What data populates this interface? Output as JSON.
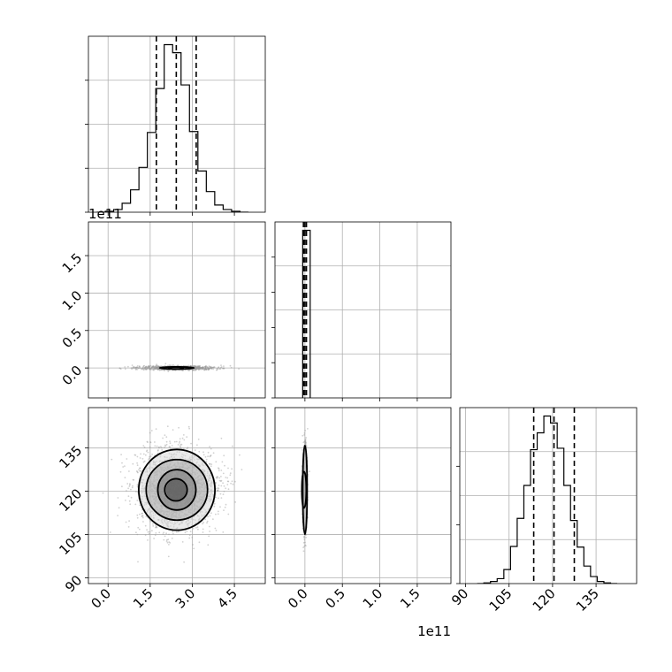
{
  "chart_data": {
    "type": "corner",
    "parameters": [
      {
        "index": 0,
        "tick_labels": [
          "0.0",
          "1.5",
          "3.0",
          "4.5"
        ],
        "tick_values": [
          0.0,
          1.5,
          3.0,
          4.5
        ],
        "range": [
          -0.7,
          5.6
        ]
      },
      {
        "index": 1,
        "tick_labels": [
          "0.0",
          "0.5",
          "1.0",
          "1.5"
        ],
        "tick_values": [
          0.0,
          0.5,
          1.0,
          1.5
        ],
        "range": [
          -0.4,
          1.95
        ],
        "offset_text": "1e11"
      },
      {
        "index": 2,
        "tick_labels": [
          "90",
          "105",
          "120",
          "135"
        ],
        "tick_values": [
          90,
          105,
          120,
          135
        ],
        "range": [
          88,
          149
        ]
      }
    ],
    "marginals": [
      {
        "param": 0,
        "bin_edges": [
          -0.4,
          -0.1,
          0.2,
          0.5,
          0.8,
          1.1,
          1.4,
          1.7,
          2.0,
          2.3,
          2.6,
          2.9,
          3.2,
          3.5,
          3.8,
          4.1,
          4.4,
          4.7,
          5.0
        ],
        "counts": [
          0,
          1,
          3,
          10,
          25,
          50,
          89,
          138,
          187,
          178,
          142,
          90,
          46,
          23,
          8,
          3,
          1,
          0
        ],
        "quantiles": [
          1.72,
          2.43,
          3.14
        ]
      },
      {
        "param": 1,
        "bin_edges": [
          -0.03,
          0.07
        ],
        "counts": [
          1
        ],
        "quantiles": [
          -0.02,
          0.0,
          0.02
        ]
      },
      {
        "param": 2,
        "bin_edges": [
          94,
          96.3,
          98.6,
          100.9,
          103.2,
          105.5,
          107.8,
          110.1,
          112.4,
          114.7,
          117,
          119.3,
          121.6,
          123.9,
          126.2,
          128.5,
          130.8,
          133.1,
          135.4,
          137.7,
          140,
          142.3
        ],
        "counts": [
          0,
          1,
          3,
          7,
          20,
          53,
          93,
          140,
          191,
          215,
          239,
          229,
          193,
          140,
          90,
          52,
          25,
          10,
          3,
          1,
          0
        ],
        "quantiles": [
          113.5,
          120.5,
          127.5
        ]
      }
    ],
    "joint": [
      {
        "x": 0,
        "y": 1,
        "center": [
          2.45,
          0.0
        ],
        "spread": [
          0.7,
          0.005
        ],
        "contour_radii": [
          0.35,
          0.9
        ]
      },
      {
        "x": 0,
        "y": 2,
        "center": [
          2.45,
          120.5
        ],
        "spread": [
          0.7,
          7
        ],
        "contour_radii": [
          0.55,
          1.0,
          1.5,
          2.0
        ]
      },
      {
        "x": 1,
        "y": 2,
        "center": [
          0.0,
          120.5
        ],
        "spread": [
          0.005,
          7
        ],
        "contour_radii": [
          0.9,
          2.2
        ]
      }
    ],
    "grid": true,
    "legend": "none"
  }
}
